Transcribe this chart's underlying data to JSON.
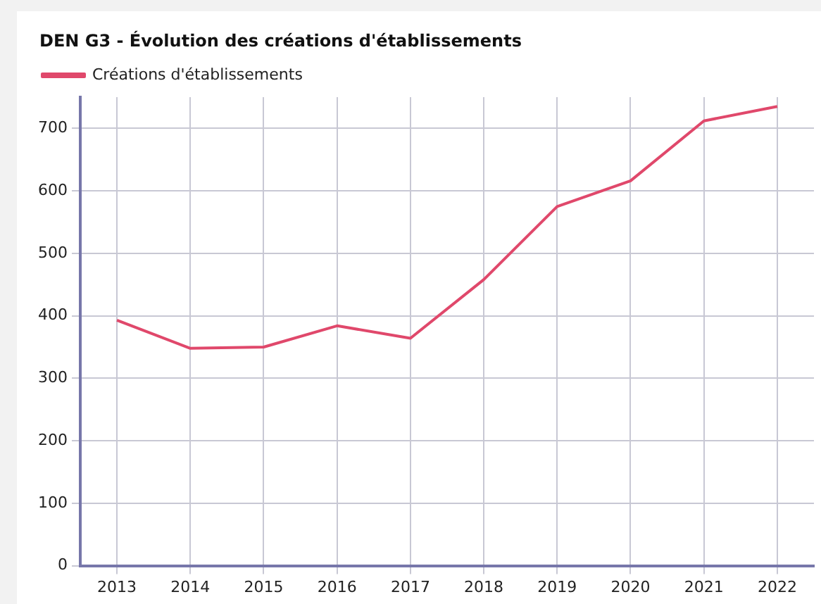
{
  "chart_data": {
    "type": "line",
    "title": "DEN G3 - Évolution des créations d'établissements",
    "categories": [
      "2013",
      "2014",
      "2015",
      "2016",
      "2017",
      "2018",
      "2019",
      "2020",
      "2021",
      "2022"
    ],
    "series": [
      {
        "name": "Créations d'établissements",
        "color": "#e0486b",
        "values": [
          393,
          348,
          350,
          384,
          364,
          458,
          575,
          616,
          712,
          735
        ]
      }
    ],
    "ylim": [
      0,
      750
    ],
    "yticks": [
      0,
      100,
      200,
      300,
      400,
      500,
      600,
      700
    ],
    "grid": true,
    "legend": "top left",
    "marker": "none",
    "line_style": "solid"
  }
}
